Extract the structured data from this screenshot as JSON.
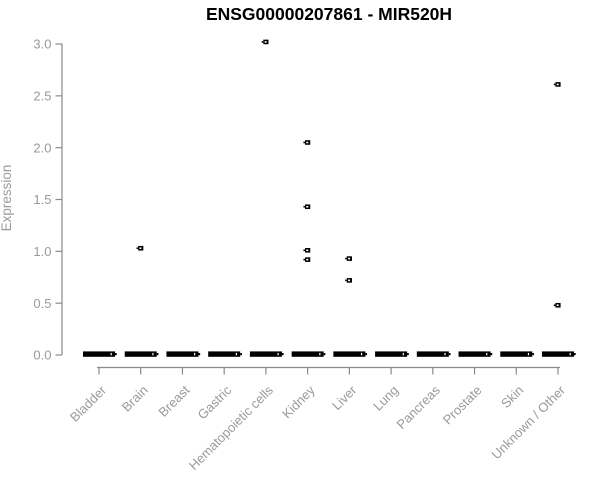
{
  "chart_data": {
    "type": "scatter",
    "title": "ENSG00000207861 - MIR520H",
    "xlabel": "",
    "ylabel": "Expression",
    "ylim": [
      0.0,
      3.0
    ],
    "grid": "off",
    "legend": "none",
    "categories": [
      "Bladder",
      "Brain",
      "Breast",
      "Gastric",
      "Hematopoietic cells",
      "Kidney",
      "Liver",
      "Lung",
      "Pancreas",
      "Prostate",
      "Skin",
      "Unknown / Other"
    ],
    "yticks": [
      {
        "value": 0.0,
        "label": "0.0"
      },
      {
        "value": 0.5,
        "label": "0.5"
      },
      {
        "value": 1.0,
        "label": "1.0"
      },
      {
        "value": 1.5,
        "label": "1.5"
      },
      {
        "value": 2.0,
        "label": "2.0"
      },
      {
        "value": 2.5,
        "label": "2.5"
      },
      {
        "value": 3.0,
        "label": "3.0"
      }
    ],
    "zero_cluster": {
      "value": 0.0,
      "all_categories": true,
      "note": "dense overlapping points at expression 0 form a thick black dash in every category"
    },
    "points": [
      {
        "category": "Brain",
        "value": 1.03
      },
      {
        "category": "Hematopoietic cells",
        "value": 3.02
      },
      {
        "category": "Kidney",
        "value": 2.05
      },
      {
        "category": "Kidney",
        "value": 1.43
      },
      {
        "category": "Kidney",
        "value": 1.01
      },
      {
        "category": "Kidney",
        "value": 0.92
      },
      {
        "category": "Liver",
        "value": 0.93
      },
      {
        "category": "Liver",
        "value": 0.72
      },
      {
        "category": "Unknown / Other",
        "value": 2.61
      },
      {
        "category": "Unknown / Other",
        "value": 0.48
      }
    ],
    "colors": {
      "points": "#000000",
      "axis_line": "#8a8a8a",
      "tick_text": "#9a9a9a",
      "title_text": "#000000",
      "background": "#ffffff"
    }
  }
}
